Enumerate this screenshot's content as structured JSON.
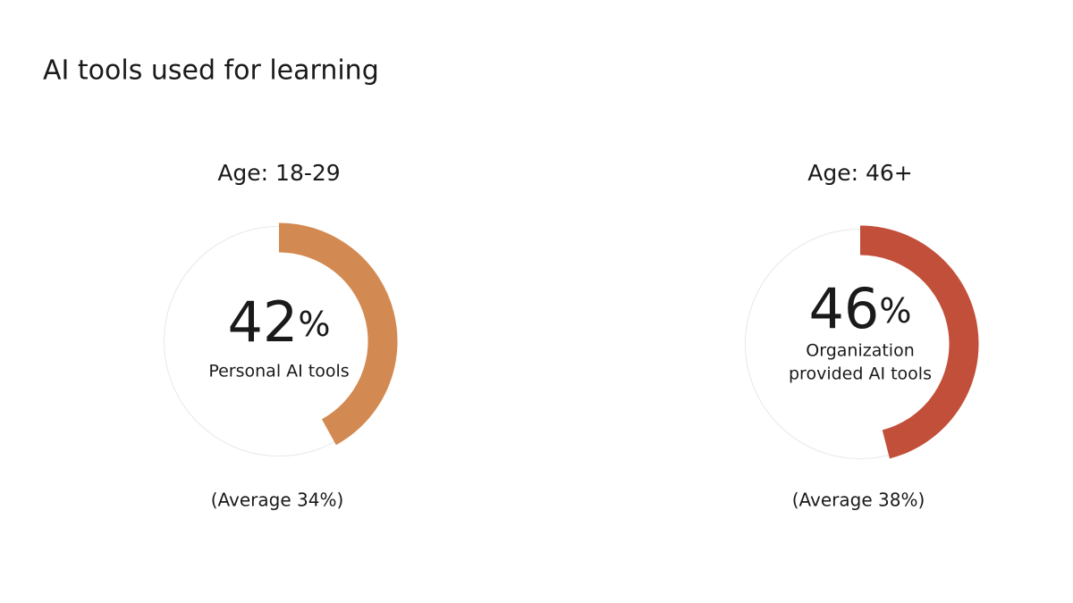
{
  "title": "AI tools used for learning",
  "chart_data": [
    {
      "type": "donut",
      "title": "Age: 18-29",
      "values": [
        42
      ],
      "value_labels": [
        "42%"
      ],
      "label": [
        "Personal AI tools"
      ],
      "color": "#d38a52",
      "note": "(Average 34%)"
    },
    {
      "type": "donut",
      "title": "Age: 46+",
      "values": [
        46
      ],
      "value_labels": [
        "46%"
      ],
      "label": [
        "Organization",
        "provided AI tools"
      ],
      "color": "#c24f39",
      "note": "(Average 38%)"
    }
  ]
}
